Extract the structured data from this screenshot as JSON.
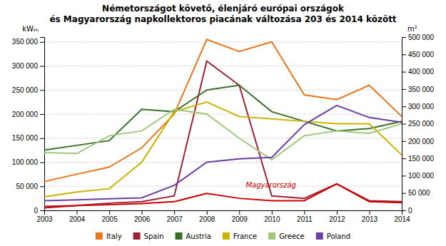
{
  "chart_data": {
    "type": "line",
    "title": "Németországot követő, élenjáró európai országok\nés Magyarország napkollektoros piacának változása 203 és 2014 között",
    "ylabel": "kWₜₕ",
    "y2label": "m²",
    "x": [
      2003,
      2004,
      2005,
      2006,
      2007,
      2008,
      2009,
      2010,
      2011,
      2012,
      2013,
      2014
    ],
    "xlim": [
      2003,
      2014
    ],
    "xticks": [
      2003,
      2004,
      2005,
      2006,
      2007,
      2008,
      2009,
      2010,
      2011,
      2012,
      2013,
      2014
    ],
    "ylim": [
      0,
      360000
    ],
    "yticks": [
      0,
      {
        "value": 50000,
        "label": "50 000"
      },
      {
        "value": 100000,
        "label": "100 000"
      },
      {
        "value": 150000,
        "label": "150 000"
      },
      {
        "value": 200000,
        "label": "200 000"
      },
      {
        "value": 250000,
        "label": "250 000"
      },
      {
        "value": 300000,
        "label": "300 000"
      },
      {
        "value": 350000,
        "label": "350 000"
      }
    ],
    "y2lim": [
      0,
      500000
    ],
    "y2ticks": [
      0,
      {
        "value": 50000,
        "label": "50 000"
      },
      {
        "value": 100000,
        "label": "100 000"
      },
      {
        "value": 150000,
        "label": "150 000"
      },
      {
        "value": 200000,
        "label": "200 000"
      },
      {
        "value": 250000,
        "label": "250 000"
      },
      {
        "value": 300000,
        "label": "300 000"
      },
      {
        "value": 350000,
        "label": "350 000"
      },
      {
        "value": 400000,
        "label": "400 000"
      },
      {
        "value": 450000,
        "label": "450 000"
      },
      {
        "value": 500000,
        "label": "500 000"
      }
    ],
    "grid": true,
    "legend": "bottom",
    "series": [
      {
        "name": "Italy",
        "color": "#e8771e",
        "values": [
          60000,
          75000,
          90000,
          130000,
          200000,
          355000,
          330000,
          350000,
          240000,
          230000,
          260000,
          195000
        ]
      },
      {
        "name": "Spain",
        "color": "#9b2335",
        "values": [
          8000,
          10000,
          15000,
          18000,
          30000,
          310000,
          260000,
          30000,
          25000,
          55000,
          20000,
          18000
        ]
      },
      {
        "name": "Austria",
        "color": "#3a6e28",
        "values": [
          125000,
          135000,
          145000,
          210000,
          205000,
          250000,
          260000,
          205000,
          185000,
          165000,
          170000,
          185000
        ]
      },
      {
        "name": "France",
        "color": "#c8b400",
        "values": [
          28000,
          38000,
          45000,
          100000,
          205000,
          225000,
          195000,
          190000,
          185000,
          180000,
          180000,
          115000
        ]
      },
      {
        "name": "Greece",
        "color": "#9dc87a",
        "values": [
          120000,
          118000,
          155000,
          165000,
          210000,
          200000,
          150000,
          105000,
          155000,
          165000,
          160000,
          180000
        ]
      },
      {
        "name": "Poland",
        "color": "#6a3fa0",
        "values": [
          20000,
          22000,
          24000,
          26000,
          52000,
          100000,
          107000,
          110000,
          178000,
          218000,
          193000,
          183000
        ]
      },
      {
        "color": "#cc0000",
        "values": [
          5000,
          10000,
          12000,
          14000,
          18000,
          35000,
          25000,
          20000,
          20000,
          55000,
          18000,
          16000
        ]
      }
    ],
    "annotations": [
      {
        "text": "Magyarország",
        "x": 2009.2,
        "y": 48000,
        "color": "#cc0000"
      }
    ]
  }
}
